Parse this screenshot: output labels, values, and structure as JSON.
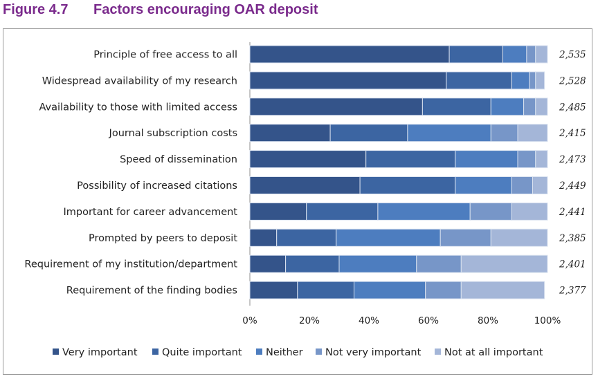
{
  "figure": {
    "number": "Figure 4.7",
    "title": "Factors encouraging OAR deposit"
  },
  "colors": {
    "title": "#7a2a8c",
    "series": [
      "#34548a",
      "#3c65a2",
      "#4d7dbf",
      "#7796c8",
      "#a4b6d8"
    ],
    "bar_border": "#dbe3f0"
  },
  "chart_data": {
    "type": "bar",
    "orientation": "horizontal",
    "stacked": true,
    "percent": true,
    "title": "Factors encouraging OAR deposit",
    "xlabel": "",
    "ylabel": "",
    "xlim": [
      0,
      100
    ],
    "xticks": [
      "0%",
      "20%",
      "40%",
      "60%",
      "80%",
      "100%"
    ],
    "legend_position": "bottom",
    "categories": [
      "Principle of free access to all",
      "Widespread availability of my research",
      "Availability to those with limited access",
      "Journal subscription costs",
      "Speed of dissemination",
      "Possibility of increased citations",
      "Important for career advancement",
      "Prompted by peers to deposit",
      "Requirement of my institution/department",
      "Requirement of the finding bodies"
    ],
    "counts": [
      "2,535",
      "2,528",
      "2,485",
      "2,415",
      "2,473",
      "2,449",
      "2,441",
      "2,385",
      "2,401",
      "2,377"
    ],
    "series": [
      {
        "name": "Very important",
        "values": [
          67,
          66,
          58,
          27,
          39,
          37,
          19,
          9,
          12,
          16
        ]
      },
      {
        "name": "Quite important",
        "values": [
          18,
          22,
          23,
          26,
          30,
          32,
          24,
          20,
          18,
          19
        ]
      },
      {
        "name": "Neither",
        "values": [
          8,
          6,
          11,
          28,
          21,
          19,
          31,
          35,
          26,
          24
        ]
      },
      {
        "name": "Not very important",
        "values": [
          3,
          2,
          4,
          9,
          6,
          7,
          14,
          17,
          15,
          12
        ]
      },
      {
        "name": "Not at all important",
        "values": [
          4,
          3,
          4,
          10,
          4,
          5,
          12,
          19,
          29,
          28
        ]
      }
    ]
  }
}
